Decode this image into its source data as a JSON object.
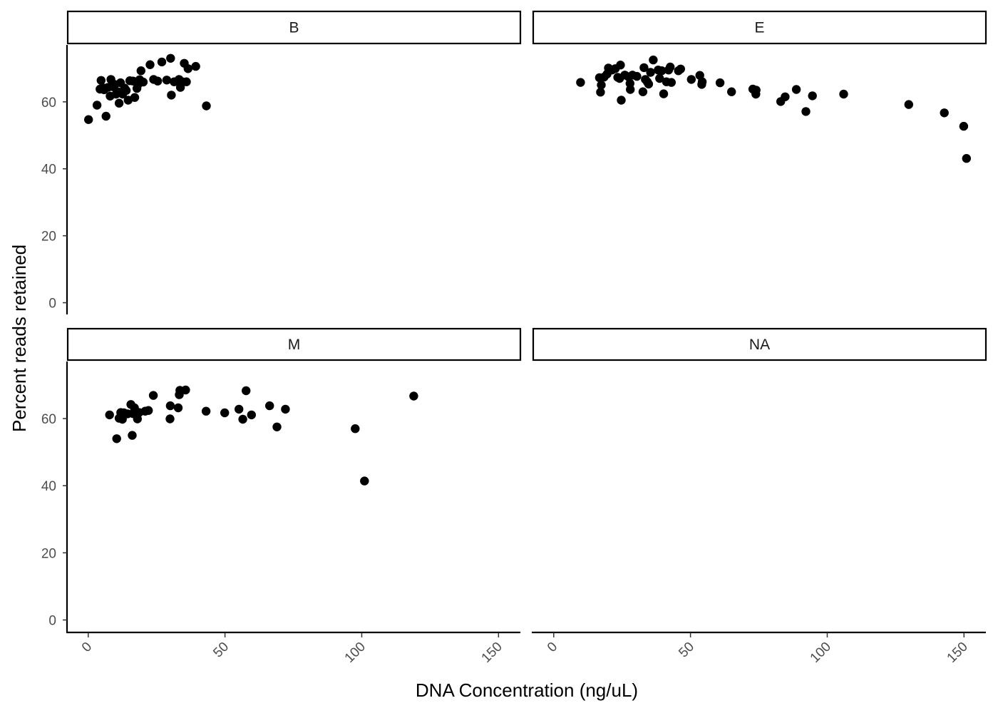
{
  "chart_data": {
    "type": "scatter",
    "xlabel": "DNA Concentration (ng/uL)",
    "ylabel": "Percent reads retained",
    "xlim": [
      -7.5,
      158
    ],
    "ylim": [
      -3.5,
      77
    ],
    "x_ticks": [
      0,
      50,
      100,
      150
    ],
    "y_ticks": [
      0,
      20,
      40,
      60
    ],
    "grid": false,
    "legend": "none",
    "facets": [
      {
        "label": "B",
        "points": [
          [
            0.1,
            54.7
          ],
          [
            3.2,
            59.0
          ],
          [
            4.3,
            63.8
          ],
          [
            4.7,
            66.4
          ],
          [
            5.3,
            64.2
          ],
          [
            5.8,
            63.6
          ],
          [
            6.5,
            55.7
          ],
          [
            7.2,
            64.3
          ],
          [
            8.0,
            61.7
          ],
          [
            8.3,
            66.7
          ],
          [
            9.0,
            64.5
          ],
          [
            9.7,
            65.2
          ],
          [
            10.2,
            62.3
          ],
          [
            10.8,
            63.0
          ],
          [
            11.3,
            59.6
          ],
          [
            11.8,
            65.7
          ],
          [
            12.6,
            62.3
          ],
          [
            13.3,
            64.1
          ],
          [
            13.9,
            63.4
          ],
          [
            14.6,
            60.5
          ],
          [
            15.2,
            66.3
          ],
          [
            16.4,
            66.2
          ],
          [
            17.0,
            61.3
          ],
          [
            17.8,
            64.0
          ],
          [
            18.2,
            65.2
          ],
          [
            18.8,
            66.6
          ],
          [
            19.3,
            69.3
          ],
          [
            20.1,
            65.9
          ],
          [
            22.6,
            71.1
          ],
          [
            23.9,
            66.7
          ],
          [
            25.4,
            66.2
          ],
          [
            26.9,
            71.9
          ],
          [
            28.7,
            66.5
          ],
          [
            30.1,
            73.0
          ],
          [
            30.4,
            62.0
          ],
          [
            31.4,
            66.0
          ],
          [
            33.2,
            66.7
          ],
          [
            33.7,
            64.3
          ],
          [
            34.4,
            66.0
          ],
          [
            35.1,
            71.5
          ],
          [
            35.9,
            66.0
          ],
          [
            36.5,
            69.9
          ],
          [
            39.3,
            70.6
          ],
          [
            43.2,
            58.8
          ]
        ]
      },
      {
        "label": "E",
        "points": [
          [
            9.8,
            65.8
          ],
          [
            16.7,
            67.2
          ],
          [
            17.1,
            62.9
          ],
          [
            17.4,
            65.0
          ],
          [
            18.4,
            67.4
          ],
          [
            19.5,
            68.3
          ],
          [
            20.0,
            70.1
          ],
          [
            21.3,
            69.5
          ],
          [
            22.5,
            69.9
          ],
          [
            23.4,
            67.3
          ],
          [
            24.1,
            67.0
          ],
          [
            24.4,
            71.0
          ],
          [
            24.7,
            60.5
          ],
          [
            26.0,
            68.0
          ],
          [
            27.3,
            67.5
          ],
          [
            27.9,
            65.5
          ],
          [
            28.0,
            63.7
          ],
          [
            28.8,
            68.0
          ],
          [
            30.4,
            67.6
          ],
          [
            32.6,
            63.0
          ],
          [
            33.0,
            70.2
          ],
          [
            33.5,
            66.7
          ],
          [
            34.2,
            66.0
          ],
          [
            34.7,
            65.3
          ],
          [
            35.4,
            68.8
          ],
          [
            36.4,
            72.5
          ],
          [
            38.2,
            69.5
          ],
          [
            38.7,
            67.0
          ],
          [
            39.5,
            69.3
          ],
          [
            40.2,
            62.4
          ],
          [
            41.2,
            66.0
          ],
          [
            42.0,
            69.5
          ],
          [
            42.6,
            70.4
          ],
          [
            43.0,
            65.8
          ],
          [
            45.6,
            69.3
          ],
          [
            46.4,
            69.8
          ],
          [
            50.3,
            66.7
          ],
          [
            53.4,
            67.9
          ],
          [
            54.1,
            65.2
          ],
          [
            54.3,
            66.0
          ],
          [
            60.8,
            65.7
          ],
          [
            65.0,
            63.0
          ],
          [
            72.8,
            63.8
          ],
          [
            73.9,
            62.3
          ],
          [
            74.0,
            63.5
          ],
          [
            83.0,
            60.1
          ],
          [
            84.6,
            61.5
          ],
          [
            88.7,
            63.7
          ],
          [
            92.2,
            57.1
          ],
          [
            94.6,
            61.8
          ],
          [
            106.0,
            62.3
          ],
          [
            129.8,
            59.2
          ],
          [
            142.8,
            56.7
          ],
          [
            149.9,
            52.7
          ],
          [
            150.9,
            43.1
          ]
        ]
      },
      {
        "label": "M",
        "points": [
          [
            7.8,
            61.1
          ],
          [
            10.4,
            54.0
          ],
          [
            11.3,
            60.1
          ],
          [
            11.9,
            61.8
          ],
          [
            12.5,
            59.8
          ],
          [
            13.0,
            61.7
          ],
          [
            14.4,
            61.4
          ],
          [
            15.6,
            64.2
          ],
          [
            16.1,
            55.0
          ],
          [
            16.3,
            61.5
          ],
          [
            16.9,
            63.2
          ],
          [
            17.8,
            61.3
          ],
          [
            18.0,
            59.9
          ],
          [
            18.6,
            61.8
          ],
          [
            20.8,
            62.2
          ],
          [
            22.0,
            62.4
          ],
          [
            23.8,
            66.9
          ],
          [
            29.9,
            59.9
          ],
          [
            30.0,
            63.8
          ],
          [
            32.9,
            63.2
          ],
          [
            33.3,
            67.1
          ],
          [
            33.5,
            68.4
          ],
          [
            35.6,
            68.5
          ],
          [
            43.1,
            62.2
          ],
          [
            49.9,
            61.7
          ],
          [
            55.1,
            62.8
          ],
          [
            56.5,
            59.8
          ],
          [
            57.7,
            68.3
          ],
          [
            59.7,
            61.1
          ],
          [
            66.3,
            63.8
          ],
          [
            69.0,
            57.5
          ],
          [
            72.1,
            62.8
          ],
          [
            97.6,
            57.0
          ],
          [
            101.0,
            41.4
          ],
          [
            119.0,
            66.7
          ]
        ]
      },
      {
        "label": "NA",
        "points": []
      }
    ]
  }
}
